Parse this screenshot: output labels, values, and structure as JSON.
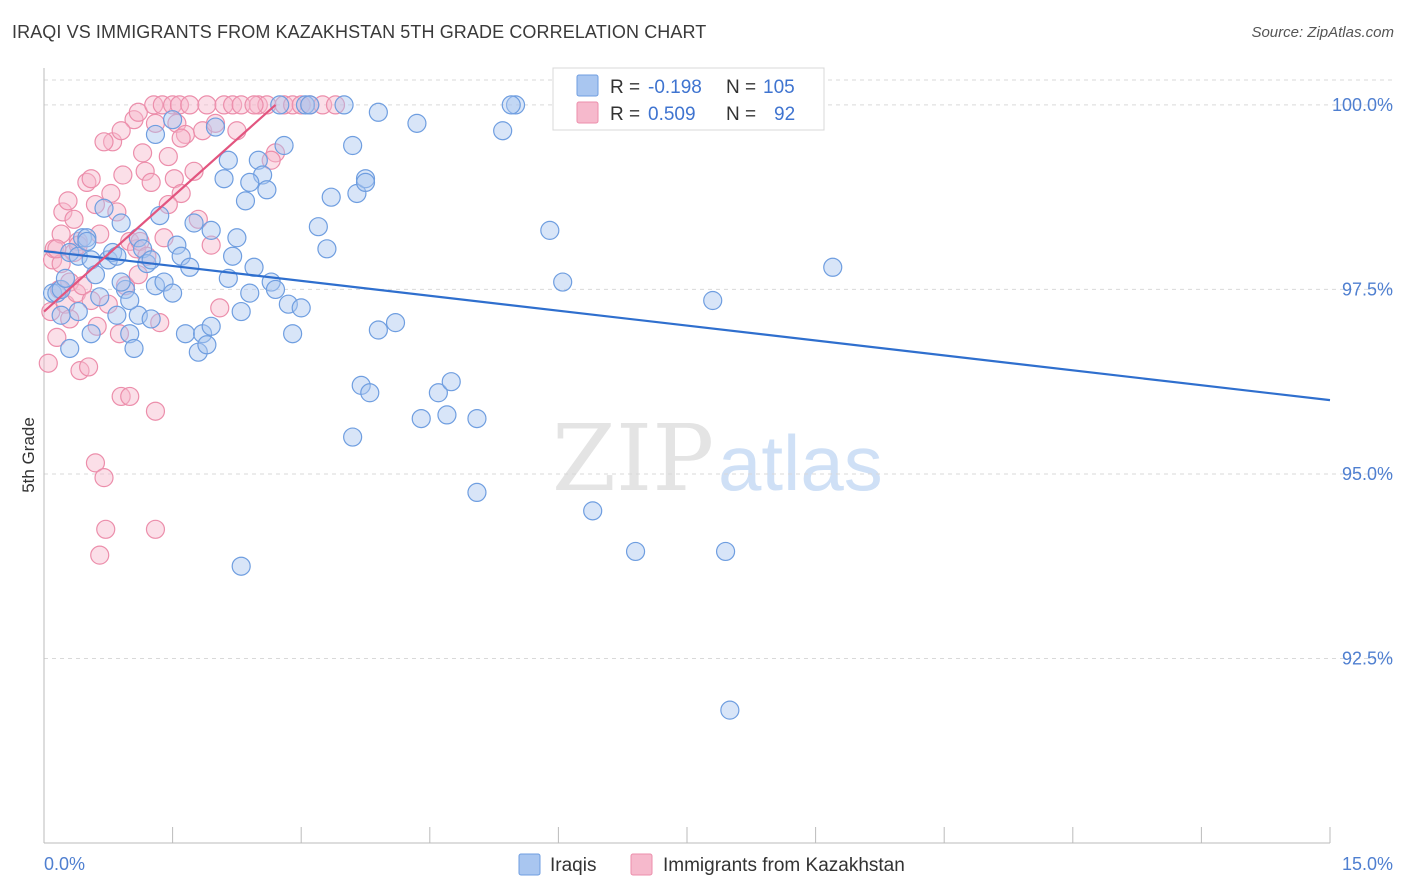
{
  "header": {
    "title": "IRAQI VS IMMIGRANTS FROM KAZAKHSTAN 5TH GRADE CORRELATION CHART",
    "source": "Source: ZipAtlas.com"
  },
  "watermark": {
    "zip": "ZIP",
    "atlas": "atlas"
  },
  "colors": {
    "iraqis_fill": "#a9c6f0",
    "iraqis_stroke": "#6f9ee0",
    "iraqis_line": "#2f6fce",
    "kaz_fill": "#f6b9cc",
    "kaz_stroke": "#ec8eab",
    "kaz_line": "#e2557f",
    "grid": "#d9d9d9",
    "axis": "#bbbbbb"
  },
  "stats_legend": {
    "rows": [
      {
        "r_label": "R =",
        "r_value": "-0.198",
        "n_label": "N =",
        "n_value": "105"
      },
      {
        "r_label": "R =",
        "r_value": "0.509",
        "n_label": "N =",
        "n_value": "92"
      }
    ]
  },
  "bottom_legend": {
    "items": [
      "Iraqis",
      "Immigrants from Kazakhstan"
    ]
  },
  "chart_data": {
    "type": "scatter",
    "title": "IRAQI VS IMMIGRANTS FROM KAZAKHSTAN 5TH GRADE CORRELATION CHART",
    "xlabel": "",
    "ylabel": "5th Grade",
    "xlim": [
      0,
      15
    ],
    "ylim": [
      90.0,
      100.5
    ],
    "x_tick_labels": [
      "0.0%",
      "15.0%"
    ],
    "y_ticks": [
      92.5,
      95.0,
      97.5,
      100.0
    ],
    "y_tick_labels": [
      "92.5%",
      "95.0%",
      "97.5%",
      "100.0%"
    ],
    "grid": true,
    "series": [
      {
        "name": "Iraqis",
        "r": -0.198,
        "n": 105,
        "trend": {
          "x": [
            0.0,
            15.0
          ],
          "y": [
            98.02,
            96.0
          ]
        },
        "points": [
          [
            0.1,
            97.45
          ],
          [
            0.15,
            97.45
          ],
          [
            0.2,
            97.5
          ],
          [
            0.25,
            97.65
          ],
          [
            0.3,
            98.0
          ],
          [
            0.4,
            97.95
          ],
          [
            0.45,
            98.2
          ],
          [
            0.5,
            98.2
          ],
          [
            0.55,
            97.9
          ],
          [
            0.6,
            97.7
          ],
          [
            0.65,
            97.4
          ],
          [
            0.7,
            98.6
          ],
          [
            0.75,
            97.9
          ],
          [
            0.8,
            98.0
          ],
          [
            0.85,
            97.15
          ],
          [
            0.9,
            98.4
          ],
          [
            0.95,
            97.5
          ],
          [
            1.0,
            96.9
          ],
          [
            1.05,
            96.7
          ],
          [
            1.1,
            97.15
          ],
          [
            1.1,
            98.2
          ],
          [
            1.15,
            98.05
          ],
          [
            1.2,
            97.85
          ],
          [
            1.25,
            97.9
          ],
          [
            1.3,
            97.55
          ],
          [
            1.35,
            98.5
          ],
          [
            1.4,
            97.6
          ],
          [
            1.5,
            97.45
          ],
          [
            1.5,
            99.8
          ],
          [
            1.55,
            98.1
          ],
          [
            1.6,
            97.95
          ],
          [
            1.65,
            96.9
          ],
          [
            1.7,
            97.8
          ],
          [
            1.75,
            98.4
          ],
          [
            1.8,
            96.65
          ],
          [
            1.85,
            96.9
          ],
          [
            1.9,
            96.75
          ],
          [
            1.95,
            97.0
          ],
          [
            2.0,
            99.7
          ],
          [
            2.1,
            99.0
          ],
          [
            2.15,
            99.25
          ],
          [
            2.2,
            97.95
          ],
          [
            2.25,
            98.2
          ],
          [
            2.3,
            97.2
          ],
          [
            2.4,
            97.45
          ],
          [
            2.45,
            97.8
          ],
          [
            2.5,
            99.25
          ],
          [
            2.55,
            99.05
          ],
          [
            2.6,
            98.85
          ],
          [
            2.65,
            97.6
          ],
          [
            2.7,
            97.5
          ],
          [
            2.75,
            100.0
          ],
          [
            2.8,
            99.45
          ],
          [
            2.85,
            97.3
          ],
          [
            2.9,
            96.9
          ],
          [
            3.0,
            97.25
          ],
          [
            3.05,
            100.0
          ],
          [
            3.1,
            100.0
          ],
          [
            3.2,
            98.35
          ],
          [
            3.3,
            98.05
          ],
          [
            3.5,
            100.0
          ],
          [
            3.6,
            99.45
          ],
          [
            3.65,
            98.8
          ],
          [
            3.75,
            99.0
          ],
          [
            3.7,
            96.2
          ],
          [
            3.8,
            96.1
          ],
          [
            3.9,
            99.9
          ],
          [
            3.6,
            95.5
          ],
          [
            3.9,
            96.95
          ],
          [
            4.1,
            97.05
          ],
          [
            4.35,
            99.75
          ],
          [
            4.4,
            95.75
          ],
          [
            4.6,
            96.1
          ],
          [
            4.7,
            95.8
          ],
          [
            4.75,
            96.25
          ],
          [
            5.05,
            95.75
          ],
          [
            5.05,
            94.75
          ],
          [
            5.35,
            99.65
          ],
          [
            5.5,
            100.0
          ],
          [
            5.9,
            98.3
          ],
          [
            6.05,
            97.6
          ],
          [
            6.4,
            94.5
          ],
          [
            6.9,
            93.95
          ],
          [
            7.8,
            97.35
          ],
          [
            7.95,
            93.95
          ],
          [
            8.0,
            91.8
          ],
          [
            9.2,
            97.8
          ],
          [
            2.3,
            93.75
          ],
          [
            0.55,
            96.9
          ],
          [
            1.0,
            97.35
          ],
          [
            2.35,
            98.7
          ],
          [
            3.75,
            98.95
          ],
          [
            1.95,
            98.3
          ],
          [
            0.5,
            98.15
          ],
          [
            0.3,
            96.7
          ],
          [
            0.4,
            97.2
          ],
          [
            1.25,
            97.1
          ],
          [
            2.15,
            97.65
          ],
          [
            0.85,
            97.95
          ],
          [
            0.2,
            97.15
          ],
          [
            5.45,
            100.0
          ],
          [
            2.4,
            98.95
          ],
          [
            3.35,
            98.75
          ],
          [
            1.3,
            99.6
          ],
          [
            0.9,
            97.6
          ]
        ]
      },
      {
        "name": "Immigrants from Kazakhstan",
        "r": 0.509,
        "n": 92,
        "trend": {
          "x": [
            0.0,
            2.7
          ],
          "y": [
            97.2,
            100.0
          ]
        },
        "points": [
          [
            0.05,
            96.5
          ],
          [
            0.08,
            97.2
          ],
          [
            0.1,
            97.9
          ],
          [
            0.12,
            98.05
          ],
          [
            0.15,
            96.85
          ],
          [
            0.18,
            97.5
          ],
          [
            0.2,
            98.25
          ],
          [
            0.22,
            98.55
          ],
          [
            0.25,
            97.3
          ],
          [
            0.28,
            98.7
          ],
          [
            0.3,
            97.6
          ],
          [
            0.35,
            98.0
          ],
          [
            0.38,
            97.45
          ],
          [
            0.4,
            98.15
          ],
          [
            0.42,
            96.4
          ],
          [
            0.45,
            97.55
          ],
          [
            0.5,
            98.95
          ],
          [
            0.52,
            96.45
          ],
          [
            0.55,
            97.35
          ],
          [
            0.6,
            95.15
          ],
          [
            0.62,
            97.0
          ],
          [
            0.65,
            98.25
          ],
          [
            0.7,
            94.95
          ],
          [
            0.72,
            94.25
          ],
          [
            0.75,
            97.3
          ],
          [
            0.78,
            98.8
          ],
          [
            0.8,
            99.5
          ],
          [
            0.85,
            98.55
          ],
          [
            0.88,
            96.9
          ],
          [
            0.9,
            96.05
          ],
          [
            0.92,
            99.05
          ],
          [
            0.95,
            97.55
          ],
          [
            1.0,
            98.15
          ],
          [
            1.05,
            99.8
          ],
          [
            1.08,
            98.05
          ],
          [
            1.1,
            99.9
          ],
          [
            1.12,
            98.15
          ],
          [
            1.15,
            99.35
          ],
          [
            1.18,
            99.1
          ],
          [
            1.2,
            97.95
          ],
          [
            1.25,
            98.95
          ],
          [
            1.28,
            100.0
          ],
          [
            1.3,
            99.75
          ],
          [
            1.35,
            97.05
          ],
          [
            1.38,
            100.0
          ],
          [
            1.4,
            98.2
          ],
          [
            1.45,
            99.3
          ],
          [
            1.5,
            100.0
          ],
          [
            1.52,
            99.0
          ],
          [
            1.55,
            99.75
          ],
          [
            1.58,
            100.0
          ],
          [
            1.6,
            98.8
          ],
          [
            1.65,
            99.6
          ],
          [
            1.7,
            100.0
          ],
          [
            1.75,
            99.1
          ],
          [
            1.8,
            98.45
          ],
          [
            1.85,
            99.65
          ],
          [
            1.9,
            100.0
          ],
          [
            1.95,
            98.1
          ],
          [
            2.0,
            99.75
          ],
          [
            2.05,
            97.25
          ],
          [
            2.1,
            100.0
          ],
          [
            2.2,
            100.0
          ],
          [
            2.25,
            99.65
          ],
          [
            2.3,
            100.0
          ],
          [
            2.5,
            100.0
          ],
          [
            2.6,
            100.0
          ],
          [
            2.7,
            99.35
          ],
          [
            2.8,
            100.0
          ],
          [
            2.9,
            100.0
          ],
          [
            3.0,
            100.0
          ],
          [
            3.1,
            100.0
          ],
          [
            3.25,
            100.0
          ],
          [
            3.4,
            100.0
          ],
          [
            0.4,
            98.1
          ],
          [
            1.0,
            96.05
          ],
          [
            1.3,
            95.85
          ],
          [
            1.3,
            94.25
          ],
          [
            0.65,
            93.9
          ],
          [
            0.3,
            97.1
          ],
          [
            0.55,
            99.0
          ],
          [
            0.6,
            98.65
          ],
          [
            0.7,
            99.5
          ],
          [
            0.9,
            99.65
          ],
          [
            1.45,
            98.65
          ],
          [
            1.6,
            99.55
          ],
          [
            2.65,
            99.25
          ],
          [
            1.1,
            97.7
          ],
          [
            0.2,
            97.85
          ],
          [
            0.35,
            98.45
          ],
          [
            0.15,
            98.05
          ],
          [
            2.45,
            100.0
          ]
        ]
      }
    ]
  }
}
